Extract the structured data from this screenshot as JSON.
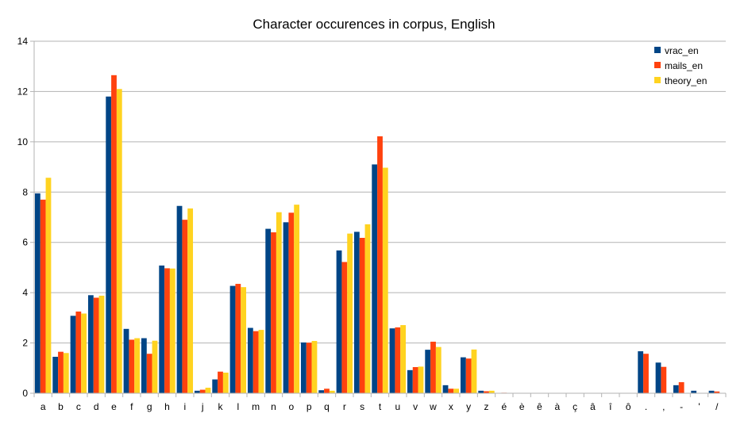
{
  "chart_data": {
    "type": "bar",
    "title": "Character occurences in corpus, English",
    "xlabel": "",
    "ylabel": "",
    "ylim": [
      0,
      14
    ],
    "yticks": [
      0,
      2,
      4,
      6,
      8,
      10,
      12,
      14
    ],
    "grid": true,
    "legend_position": "top-right",
    "categories": [
      "a",
      "b",
      "c",
      "d",
      "e",
      "f",
      "g",
      "h",
      "i",
      "j",
      "k",
      "l",
      "m",
      "n",
      "o",
      "p",
      "q",
      "r",
      "s",
      "t",
      "u",
      "v",
      "w",
      "x",
      "y",
      "z",
      "é",
      "è",
      "ê",
      "à",
      "ç",
      "â",
      "î",
      "ô",
      ".",
      ",",
      "-",
      "'",
      "/"
    ],
    "series": [
      {
        "name": "vrac_en",
        "color": "#004586",
        "values": [
          7.95,
          1.45,
          3.08,
          3.9,
          11.8,
          2.56,
          2.19,
          5.08,
          7.45,
          0.1,
          0.55,
          4.27,
          2.6,
          6.54,
          6.8,
          2.02,
          0.12,
          5.68,
          6.42,
          9.1,
          2.58,
          0.92,
          1.73,
          0.32,
          1.43,
          0.1,
          0,
          0,
          0,
          0,
          0,
          0,
          0,
          0,
          1.67,
          1.22,
          0.32,
          0.1,
          0.1
        ]
      },
      {
        "name": "mails_en",
        "color": "#ff420e",
        "values": [
          7.7,
          1.65,
          3.25,
          3.8,
          12.65,
          2.13,
          1.57,
          4.97,
          6.9,
          0.14,
          0.86,
          4.35,
          2.47,
          6.4,
          7.18,
          2.01,
          0.18,
          5.22,
          6.18,
          10.22,
          2.62,
          1.04,
          2.05,
          0.18,
          1.38,
          0.08,
          0.02,
          0,
          0,
          0,
          0,
          0,
          0,
          0,
          1.57,
          1.05,
          0.44,
          0,
          0.07
        ]
      },
      {
        "name": "theory_en",
        "color": "#ffd320",
        "values": [
          8.57,
          1.6,
          3.17,
          3.88,
          12.1,
          2.19,
          2.09,
          4.96,
          7.35,
          0.22,
          0.82,
          4.22,
          2.52,
          7.2,
          7.5,
          2.08,
          0.1,
          6.35,
          6.72,
          8.97,
          2.71,
          1.06,
          1.84,
          0.18,
          1.74,
          0.1,
          0,
          0,
          0,
          0,
          0,
          0,
          0,
          0,
          0,
          0,
          0,
          0,
          0
        ]
      }
    ]
  }
}
